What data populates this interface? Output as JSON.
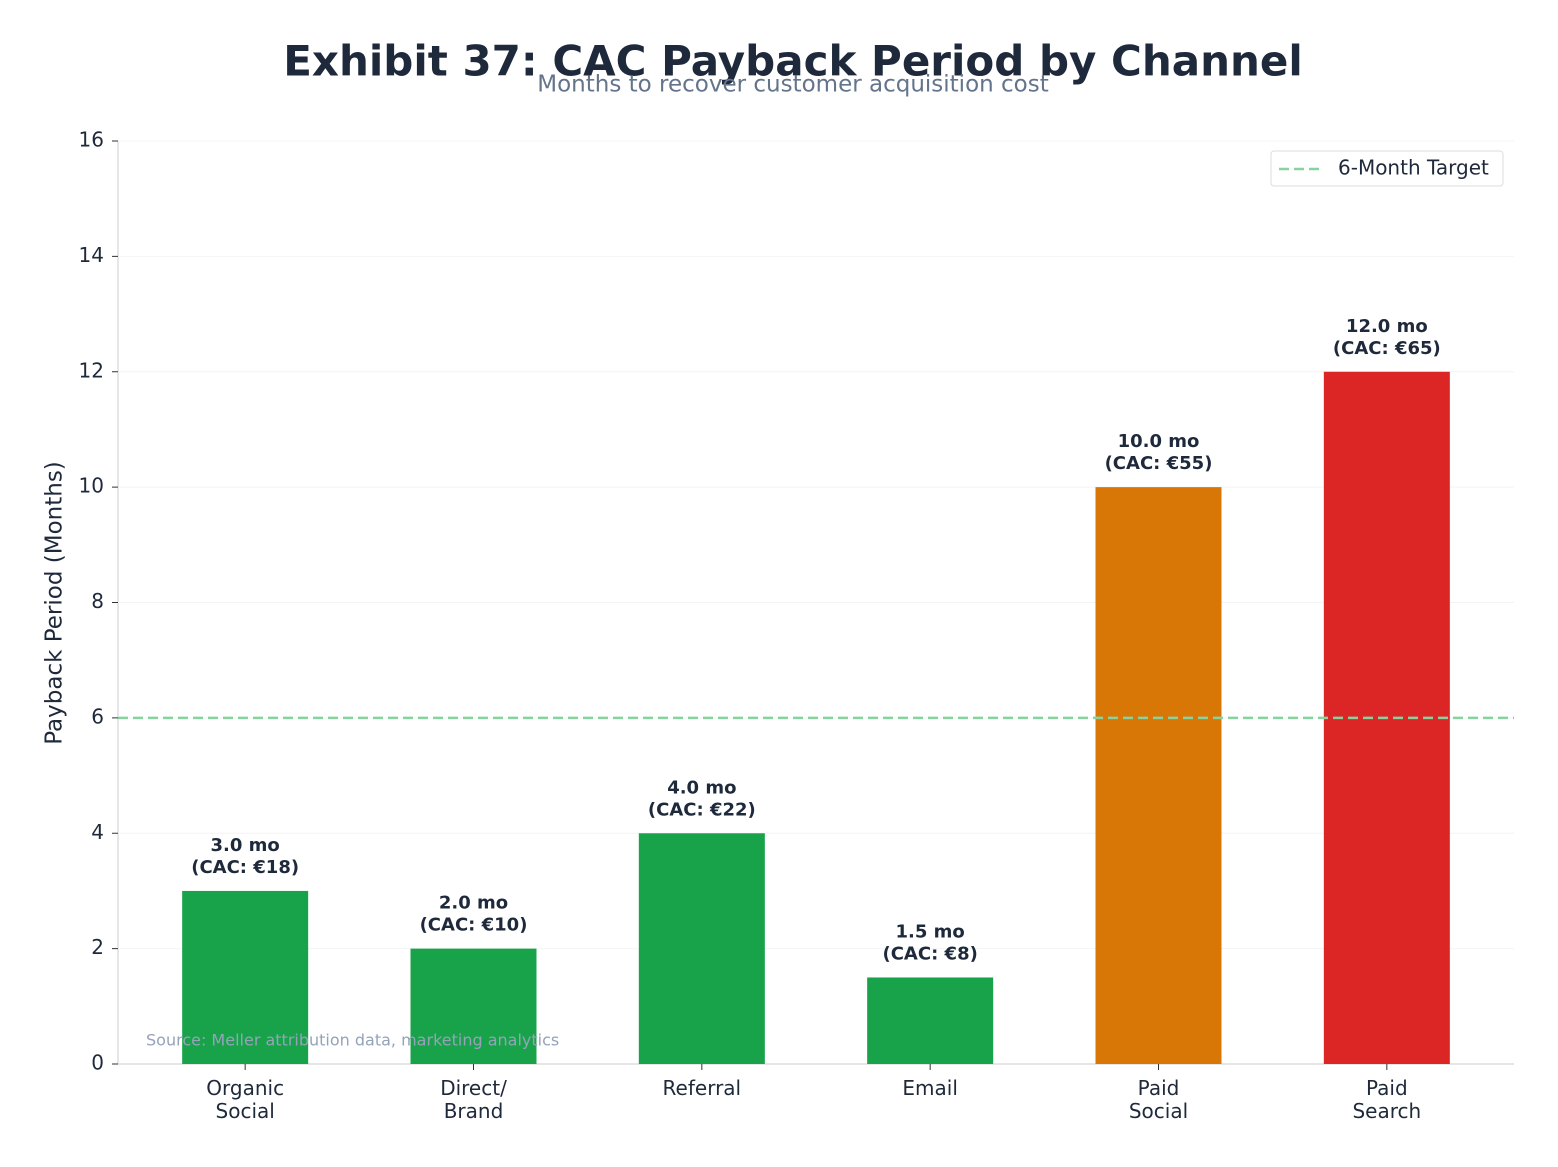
{
  "chart_data": {
    "type": "bar",
    "title": "Exhibit 37: CAC Payback Period by Channel",
    "subtitle": "Months to recover customer acquisition cost",
    "y_label": "Payback Period (Months)",
    "categories": [
      "Organic\nSocial",
      "Direct/\nBrand",
      "Referral",
      "Email",
      "Paid\nSocial",
      "Paid\nSearch"
    ],
    "values": [
      3.0,
      2.0,
      4.0,
      1.5,
      10.0,
      12.0
    ],
    "value_labels": [
      "3.0 mo\n(CAC: €18)",
      "2.0 mo\n(CAC: €10)",
      "4.0 mo\n(CAC: €22)",
      "1.5 mo\n(CAC: €8)",
      "10.0 mo\n(CAC: €55)",
      "12.0 mo\n(CAC: €65)"
    ],
    "colors": [
      "#18a34a",
      "#18a34a",
      "#18a34a",
      "#18a34a",
      "#d97706",
      "#dc2626"
    ],
    "ylim": [
      0,
      16
    ],
    "yticks": [
      0,
      2,
      4,
      6,
      8,
      10,
      12,
      14,
      16
    ],
    "grid": true,
    "reference_lines": [
      {
        "value": 6,
        "label": "6-Month Target",
        "color": "#86d3a0"
      }
    ],
    "legend_position": "upper right",
    "source": "Source: Meller attribution data, marketing analytics"
  }
}
